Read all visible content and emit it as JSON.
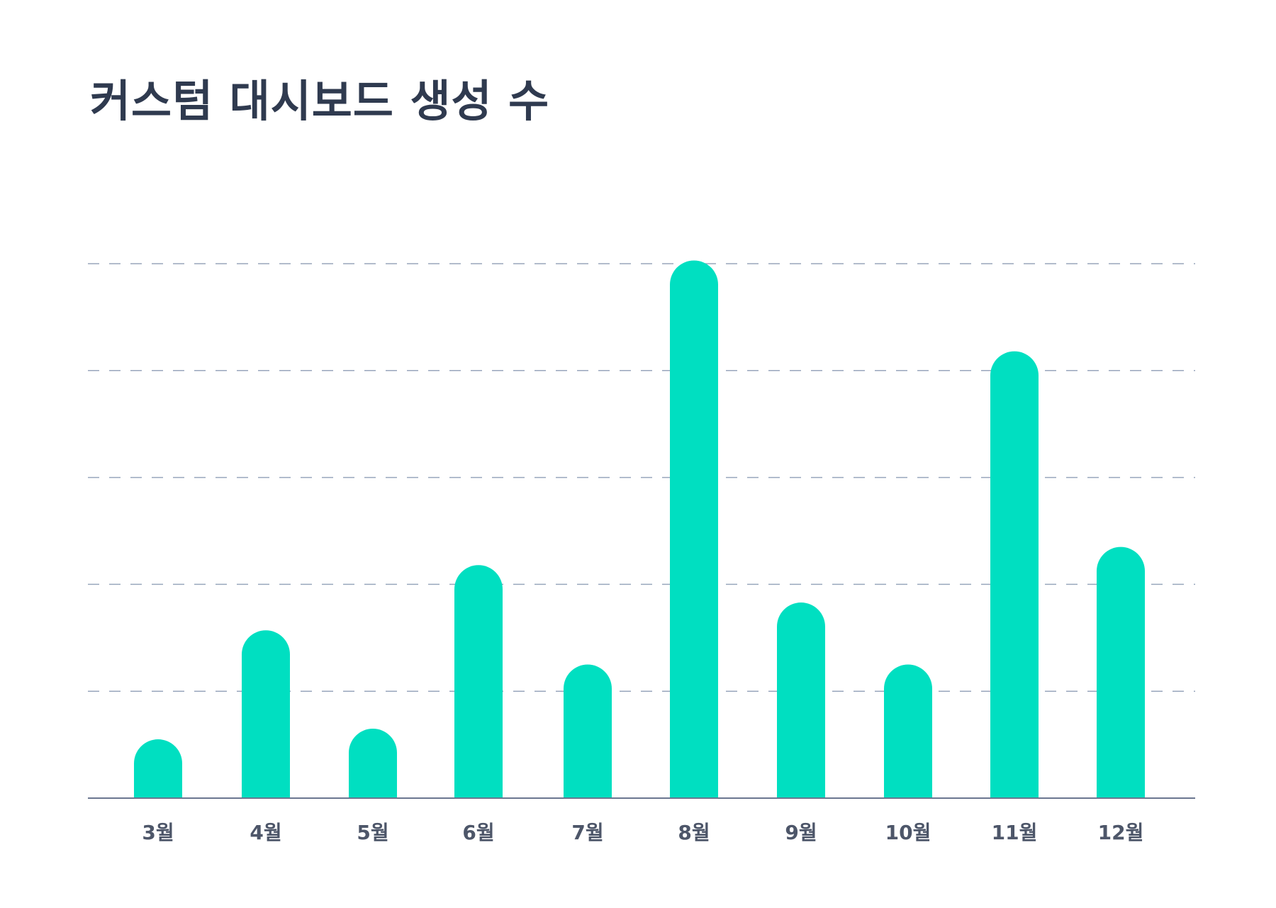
{
  "chart_data": {
    "type": "bar",
    "title": "커스텀 대시보드 생성 수",
    "xlabel": "",
    "ylabel": "",
    "categories": [
      "3월",
      "4월",
      "5월",
      "6월",
      "7월",
      "8월",
      "9월",
      "10월",
      "11월",
      "12월"
    ],
    "values": [
      0.55,
      1.57,
      0.65,
      2.18,
      1.25,
      5.03,
      1.83,
      1.25,
      4.18,
      2.35
    ],
    "ylim": [
      0,
      5
    ],
    "grid": true,
    "tick_labels_visible": false,
    "colors": {
      "bar": "#00dfc1",
      "grid": "#98a6bc",
      "axis": "#6b7790",
      "title": "#2f3a4f",
      "label": "#4d5669"
    }
  }
}
